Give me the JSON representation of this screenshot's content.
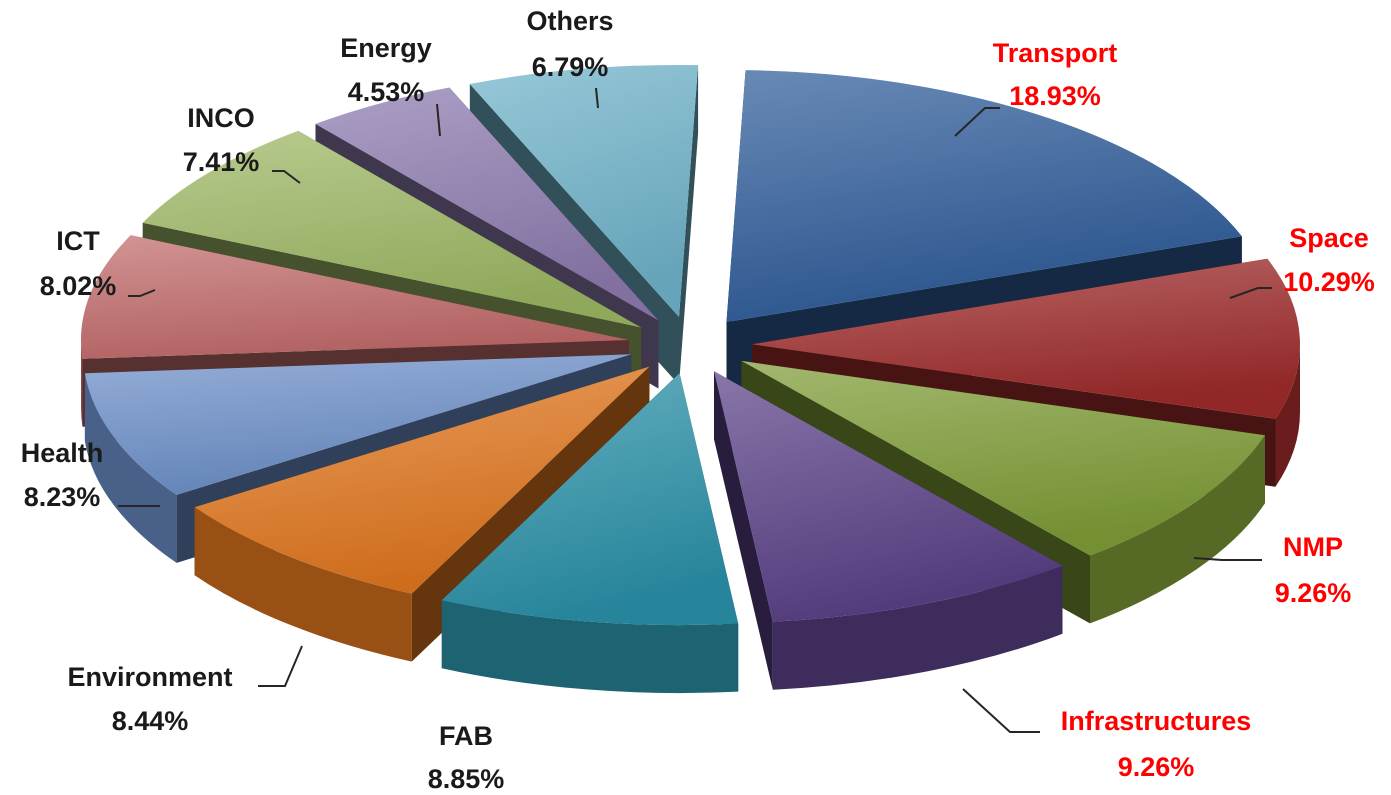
{
  "chart_data": {
    "type": "pie",
    "variant": "3d-exploded",
    "title": "",
    "categories": [
      "Transport",
      "Space",
      "NMP",
      "Infrastructures",
      "FAB",
      "Environment",
      "Health",
      "ICT",
      "INCO",
      "Energy",
      "Others"
    ],
    "values": [
      18.93,
      10.29,
      9.26,
      9.26,
      8.85,
      8.44,
      8.23,
      8.02,
      7.41,
      4.53,
      6.79
    ],
    "value_labels": [
      "18.93%",
      "10.29%",
      "9.26%",
      "9.26%",
      "8.85%",
      "8.44%",
      "8.23%",
      "8.02%",
      "7.41%",
      "4.53%",
      "6.79%"
    ],
    "unit": "%",
    "slice_colors": [
      "#2f5c9a",
      "#9e2a2a",
      "#7e9c36",
      "#5a4187",
      "#2a91a8",
      "#e0761e",
      "#6c8fc8",
      "#c26b6b",
      "#9cb763",
      "#8c7aae",
      "#6fb2c9"
    ],
    "highlighted": [
      "Transport",
      "Space",
      "NMP",
      "Infrastructures"
    ],
    "highlight_color": "#ff0000",
    "label_color": "#1a1a1a",
    "legend": "none"
  }
}
